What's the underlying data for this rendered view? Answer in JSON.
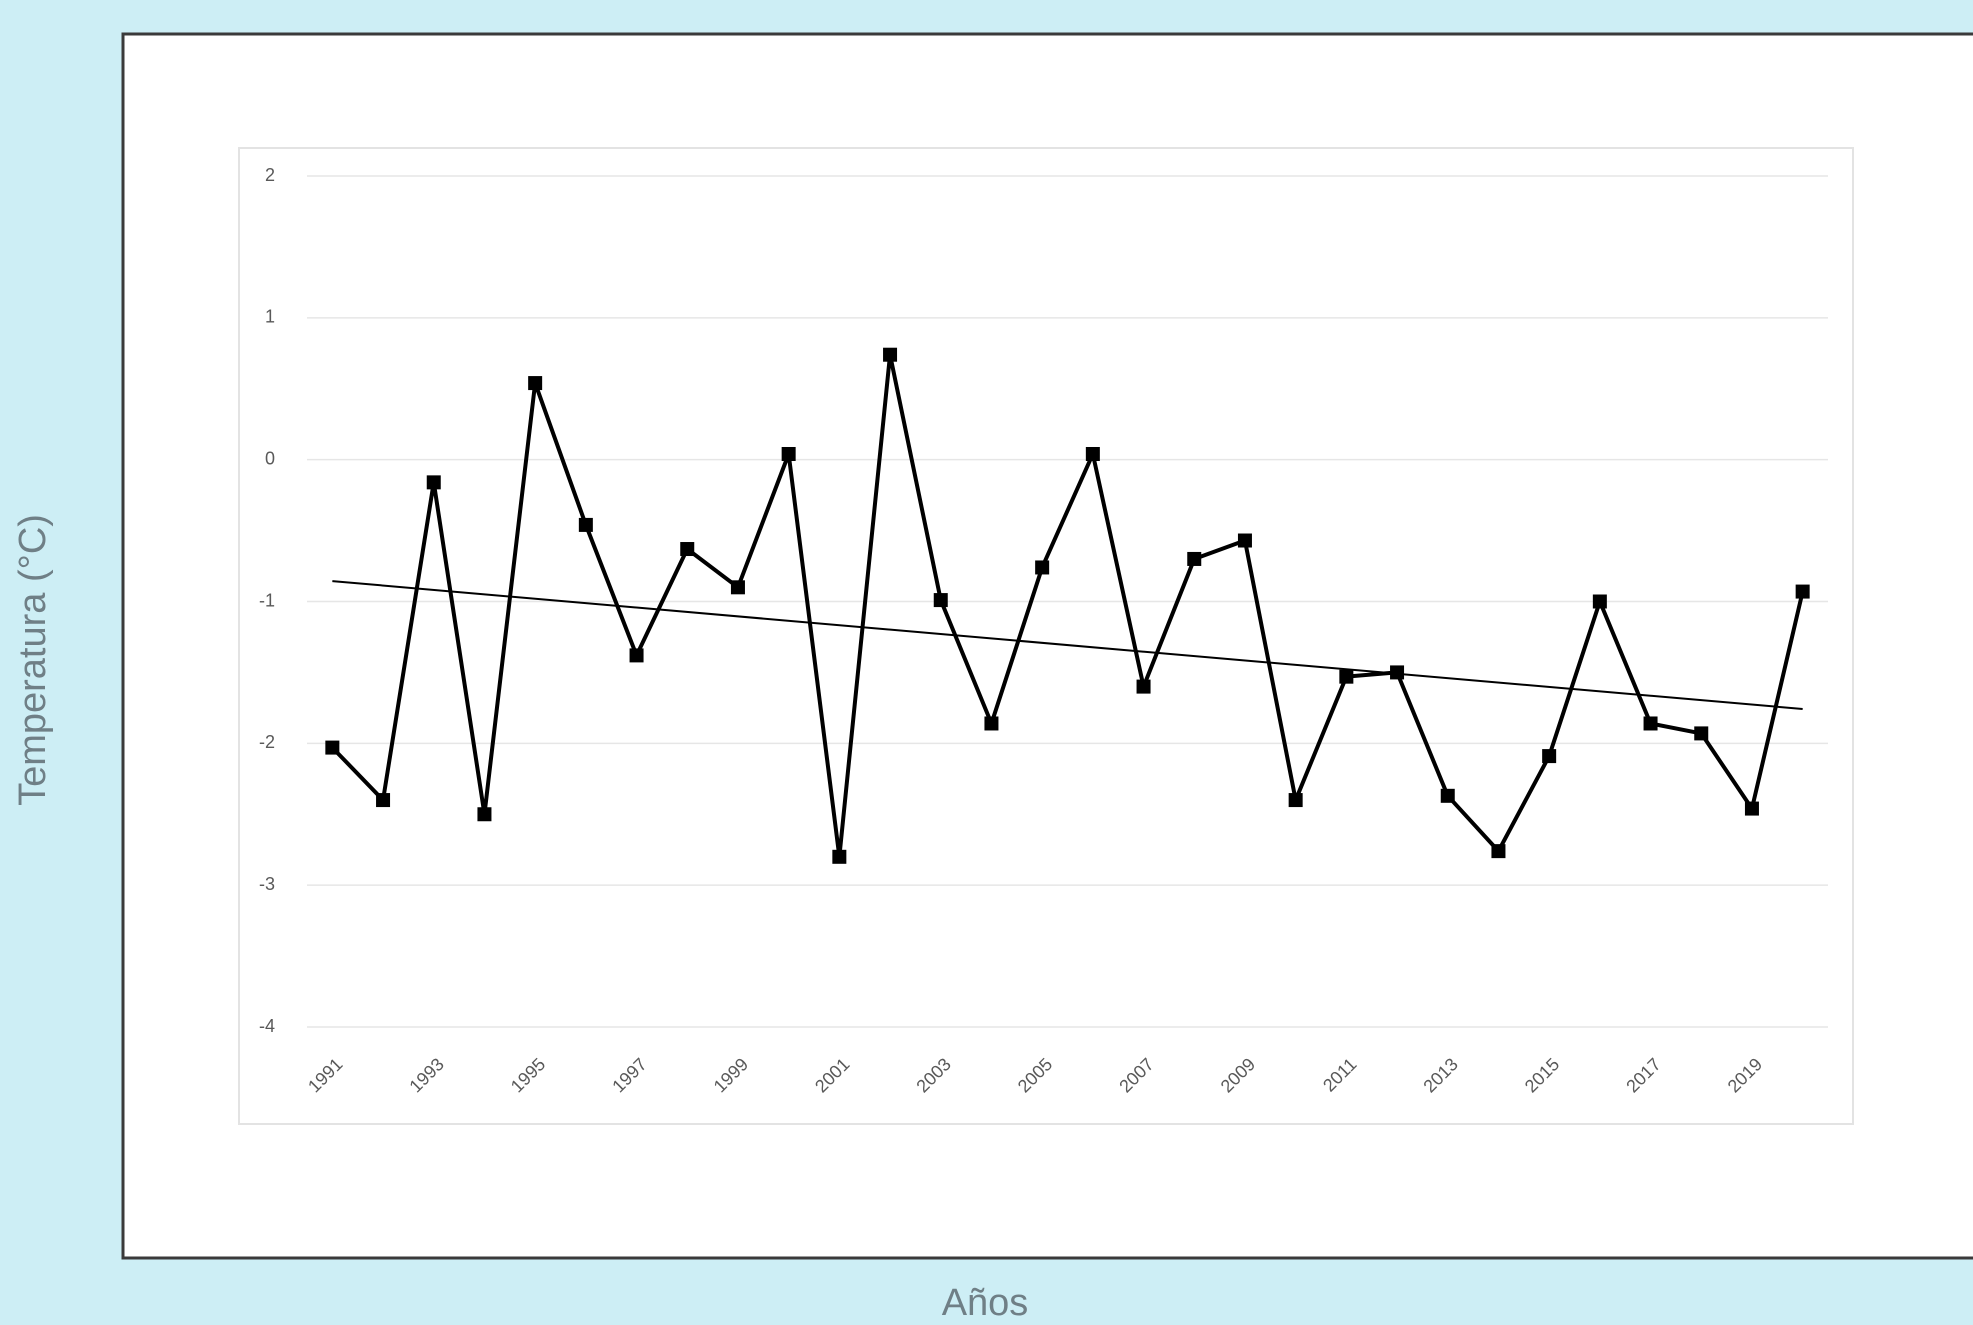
{
  "chart_data": {
    "type": "line",
    "x_label": "Años",
    "y_label": "Temperatura (°C)",
    "x": [
      1991,
      1992,
      1993,
      1994,
      1995,
      1996,
      1997,
      1998,
      1999,
      2000,
      2001,
      2002,
      2003,
      2004,
      2005,
      2006,
      2007,
      2008,
      2009,
      2010,
      2011,
      2012,
      2013,
      2014,
      2015,
      2016,
      2017,
      2018,
      2019,
      2020
    ],
    "series": [
      {
        "color": "#000000",
        "values": [
          -2.03,
          -2.4,
          -0.16,
          -2.5,
          0.54,
          -0.46,
          -1.38,
          -0.63,
          -0.9,
          0.04,
          -2.8,
          0.74,
          -0.99,
          -1.86,
          -0.76,
          0.04,
          -1.6,
          -0.7,
          -0.57,
          -2.4,
          -1.53,
          -1.5,
          -2.37,
          -2.76,
          -2.09,
          -1.0,
          -1.86,
          -1.93,
          -2.46,
          -0.93
        ]
      }
    ],
    "trendline": true,
    "xlim": [
      1990.5,
      2020.5
    ],
    "xticks": [
      1991,
      1993,
      1995,
      1997,
      1999,
      2001,
      2003,
      2005,
      2007,
      2009,
      2011,
      2013,
      2015,
      2017,
      2019
    ],
    "ylim": [
      -4,
      2
    ],
    "yticks": [
      -4,
      -3,
      -2,
      -1,
      0,
      1,
      2
    ],
    "grid": true
  }
}
